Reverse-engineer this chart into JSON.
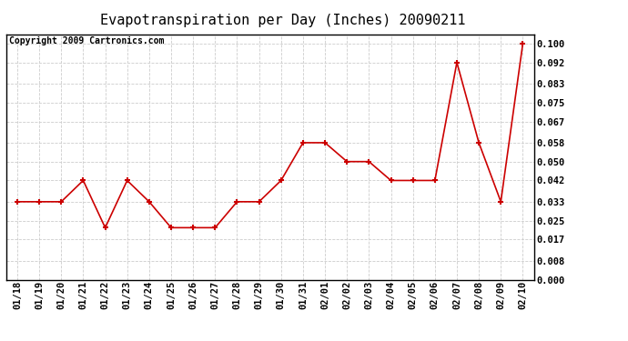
{
  "title": "Evapotranspiration per Day (Inches) 20090211",
  "copyright": "Copyright 2009 Cartronics.com",
  "x_labels": [
    "01/18",
    "01/19",
    "01/20",
    "01/21",
    "01/22",
    "01/23",
    "01/24",
    "01/25",
    "01/26",
    "01/27",
    "01/28",
    "01/29",
    "01/30",
    "01/31",
    "02/01",
    "02/02",
    "02/03",
    "02/04",
    "02/05",
    "02/06",
    "02/07",
    "02/08",
    "02/09",
    "02/10"
  ],
  "y_values": [
    0.033,
    0.033,
    0.033,
    0.042,
    0.022,
    0.042,
    0.033,
    0.022,
    0.022,
    0.022,
    0.033,
    0.033,
    0.042,
    0.058,
    0.058,
    0.05,
    0.05,
    0.042,
    0.042,
    0.042,
    0.092,
    0.058,
    0.033,
    0.1
  ],
  "y_ticks": [
    0.0,
    0.008,
    0.017,
    0.025,
    0.033,
    0.042,
    0.05,
    0.058,
    0.067,
    0.075,
    0.083,
    0.092,
    0.1
  ],
  "line_color": "#cc0000",
  "marker_color": "#cc0000",
  "background_color": "#ffffff",
  "grid_color": "#cccccc",
  "title_fontsize": 11,
  "copyright_fontsize": 7,
  "tick_fontsize": 7.5,
  "ylim": [
    0.0,
    0.104
  ]
}
